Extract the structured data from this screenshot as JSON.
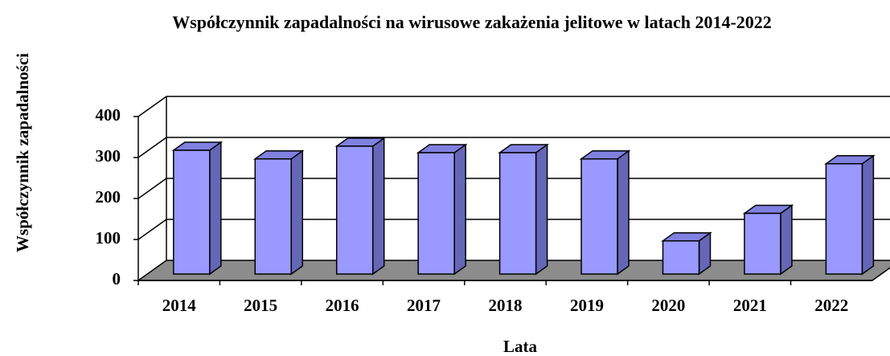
{
  "chart_data": {
    "type": "bar3d",
    "title": "Współczynnik zapadalności na wirusowe zakażenia jelitowe w latach 2014-2022",
    "x_label": "Lata",
    "y_label": "Współczynnik zapadalności",
    "categories": [
      "2014",
      "2015",
      "2016",
      "2017",
      "2018",
      "2019",
      "2020",
      "2021",
      "2022"
    ],
    "values": [
      302,
      281,
      312,
      296,
      296,
      281,
      81,
      148,
      269
    ],
    "color": "#9999ff",
    "ylim": [
      0,
      400
    ],
    "yticks": [
      0,
      100,
      200,
      300,
      400
    ],
    "grid": true
  }
}
